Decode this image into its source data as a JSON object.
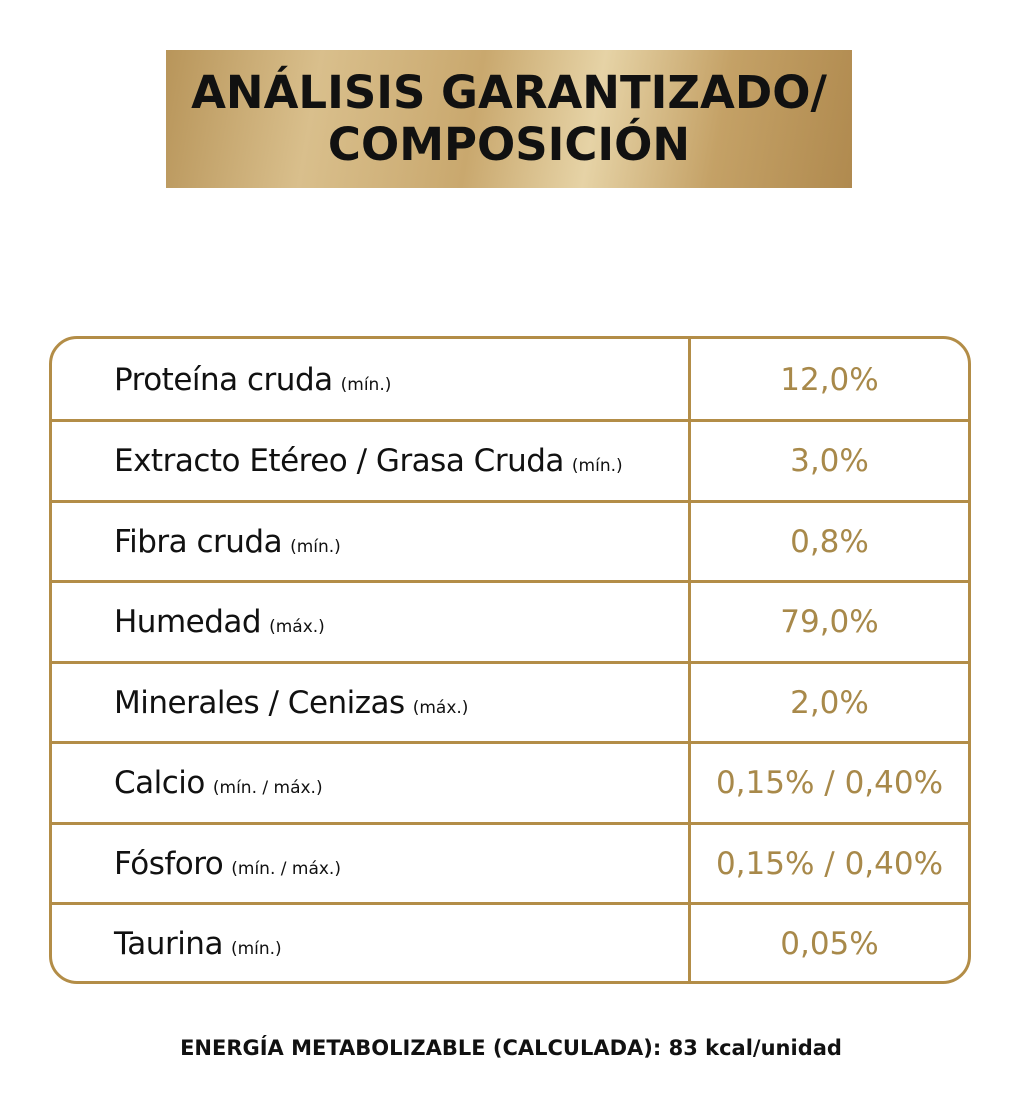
{
  "header": {
    "title_line1": "ANÁLISIS GARANTIZADO/",
    "title_line2": "COMPOSICIÓN"
  },
  "table": {
    "rows": [
      {
        "label": "Proteína cruda",
        "qualifier": "(mín.)",
        "value": "12,0%"
      },
      {
        "label": "Extracto Etéreo / Grasa Cruda",
        "qualifier": "(mín.)",
        "value": "3,0%"
      },
      {
        "label": "Fibra cruda",
        "qualifier": "(mín.)",
        "value": "0,8%"
      },
      {
        "label": "Humedad",
        "qualifier": "(máx.)",
        "value": "79,0%"
      },
      {
        "label": "Minerales / Cenizas",
        "qualifier": "(máx.)",
        "value": "2,0%"
      },
      {
        "label": "Calcio",
        "qualifier": "(mín. / máx.)",
        "value": "0,15% / 0,40%"
      },
      {
        "label": "Fósforo",
        "qualifier": "(mín. / máx.)",
        "value": "0,15% / 0,40%"
      },
      {
        "label": "Taurina",
        "qualifier": "(mín.)",
        "value": "0,05%"
      }
    ]
  },
  "footer": {
    "energy_text": "ENERGÍA METABOLIZABLE (CALCULADA): 83  kcal/unidad"
  },
  "colors": {
    "gold": "#b38d47",
    "value_text": "#a8894a",
    "text": "#111111"
  }
}
